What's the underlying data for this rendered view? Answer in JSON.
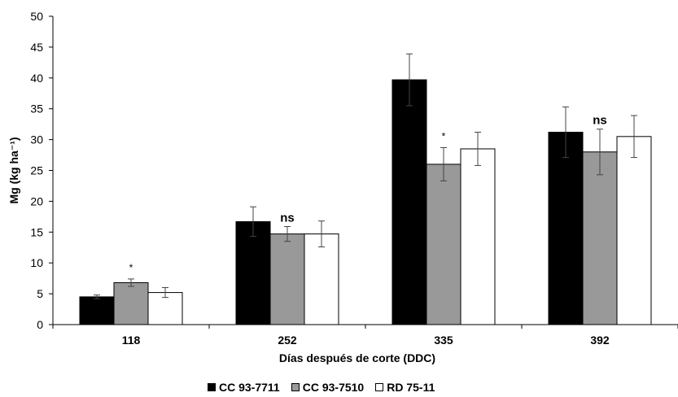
{
  "chart_data": {
    "type": "bar",
    "categories": [
      "118",
      "252",
      "335",
      "392"
    ],
    "series": [
      {
        "name": "CC 93-7711",
        "color": "#000000",
        "values": [
          4.5,
          16.7,
          39.7,
          31.2
        ],
        "errors": [
          0.3,
          2.4,
          4.2,
          4.1
        ]
      },
      {
        "name": "CC 93-7510",
        "color": "#999999",
        "values": [
          6.8,
          14.7,
          26.0,
          28.0
        ],
        "errors": [
          0.6,
          1.2,
          2.7,
          3.7
        ]
      },
      {
        "name": "RD 75-11",
        "color": "#ffffff",
        "values": [
          5.2,
          14.7,
          28.5,
          30.5
        ],
        "errors": [
          0.8,
          2.1,
          2.7,
          3.4
        ]
      }
    ],
    "annotations": [
      "*",
      "ns",
      "*",
      "ns"
    ],
    "xlabel": "Días después de corte (DDC)",
    "ylabel": "Mg (kg ha⁻¹)",
    "ylim": [
      0,
      50
    ],
    "yticks": [
      0,
      5,
      10,
      15,
      20,
      25,
      30,
      35,
      40,
      45,
      50
    ],
    "grid": false,
    "legend_position": "bottom"
  }
}
